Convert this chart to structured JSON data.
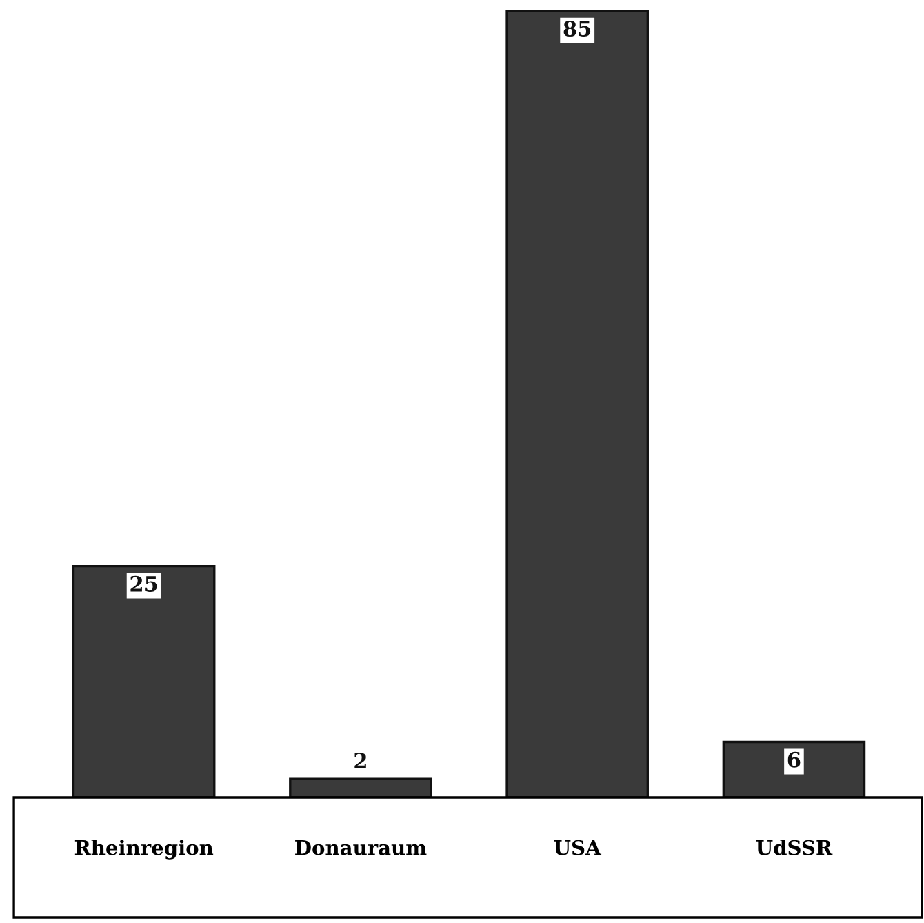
{
  "chart_data": {
    "type": "bar",
    "categories": [
      "Rheinregion",
      "Donauraum",
      "USA",
      "UdSSR"
    ],
    "values": [
      25,
      2,
      85,
      6
    ],
    "color": "#3a3a3a",
    "data_labels": true,
    "grid": false,
    "legend": false
  }
}
